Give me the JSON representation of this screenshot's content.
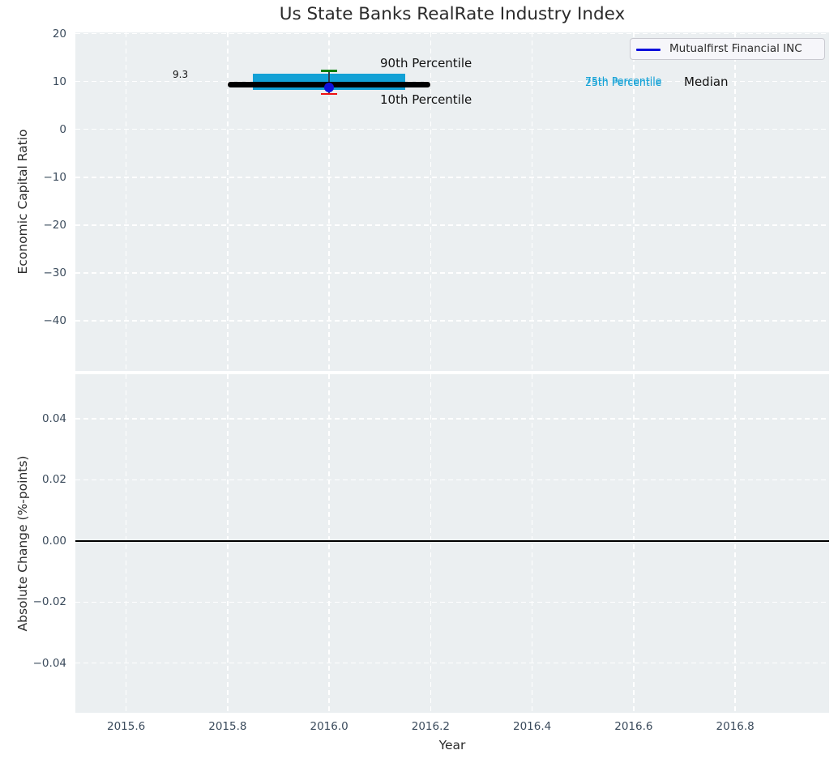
{
  "figure": {
    "title": "Us State Banks RealRate Industry Index"
  },
  "axes": {
    "top_ylabel": "Economic Capital Ratio",
    "bottom_ylabel": "Absolute Change (%-points)",
    "xlabel": "Year"
  },
  "legend": {
    "label": "Mutualfirst Financial INC",
    "position": "upper right",
    "swatch": "blue-line"
  },
  "annotations": {
    "p90_label": "90th Percentile",
    "p10_label": "10th Percentile",
    "p75_label": "75th Percentile",
    "p25_label": "25th Percentile",
    "median_label": "Median",
    "median_value_label": "9.3"
  },
  "colors": {
    "plot_bg": "#ebeff1",
    "grid": "#ffffff",
    "tick_text": "#3b4b5c",
    "title_text": "#2b2b2b",
    "annotation_text": "#111111",
    "percentile_band": "#12a1d6",
    "median_line": "#000000",
    "p90_mark": "#007d00",
    "p10_mark": "#ee1111",
    "company": "#0f10dc",
    "whisker": "#2f3f4f",
    "zero_line": "#000000",
    "legend_bg": "#f6f6fa",
    "legend_border": "#c9c9d0"
  },
  "chart_data": [
    {
      "type": "line",
      "title": "Us State Banks RealRate Industry Index",
      "xlabel": "",
      "ylabel": "Economic Capital Ratio",
      "xlim": [
        2015.5,
        2016.985
      ],
      "ylim": [
        -50.5,
        20.3
      ],
      "xticks": [
        2015.6,
        2015.8,
        2016.0,
        2016.2,
        2016.4,
        2016.6,
        2016.8
      ],
      "yticks": [
        20,
        10,
        0,
        -10,
        -20,
        -30,
        -40
      ],
      "ytick_labels": [
        "20",
        "10",
        "0",
        "−10",
        "−20",
        "−30",
        "−40"
      ],
      "grid": true,
      "legend_position": "upper right",
      "industry_box": {
        "x_center": 2016.0,
        "median": 9.3,
        "median_x_span": [
          2015.8,
          2016.2
        ],
        "box_x_span": [
          2015.85,
          2016.15
        ],
        "p90": 12.3,
        "p75": 11.6,
        "p25": 8.35,
        "p10": 7.45
      },
      "company_point": {
        "name": "Mutualfirst Financial INC",
        "x": 2016.0,
        "y": 8.8
      }
    },
    {
      "type": "line",
      "title": "",
      "xlabel": "Year",
      "ylabel": "Absolute Change (%-points)",
      "xlim": [
        2015.5,
        2016.985
      ],
      "ylim": [
        -0.0563,
        0.0546
      ],
      "xticks": [
        2015.6,
        2015.8,
        2016.0,
        2016.2,
        2016.4,
        2016.6,
        2016.8
      ],
      "xtick_labels": [
        "2015.6",
        "2015.8",
        "2016.0",
        "2016.2",
        "2016.4",
        "2016.6",
        "2016.8"
      ],
      "yticks": [
        0.04,
        0.02,
        0.0,
        -0.02,
        -0.04
      ],
      "ytick_labels": [
        "0.04",
        "0.02",
        "0.00",
        "−0.02",
        "−0.04"
      ],
      "grid": true,
      "zero_line_y": 0.0,
      "series": []
    }
  ]
}
